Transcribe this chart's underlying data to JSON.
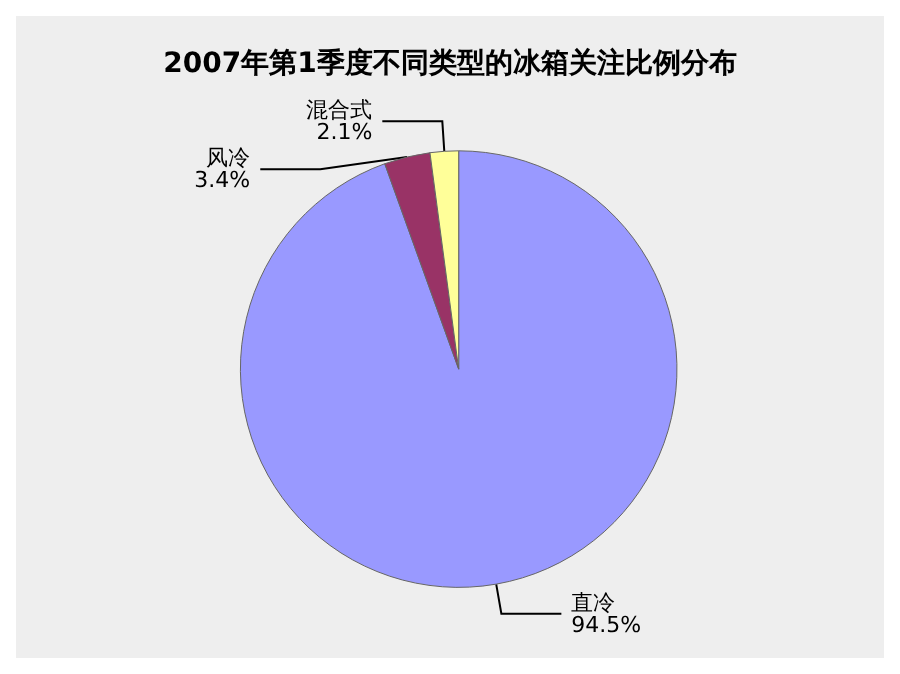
{
  "chart_data": {
    "type": "pie",
    "title": "2007年第1季度不同类型的冰箱关注比例分布",
    "categories": [
      "直冷",
      "风冷",
      "混合式"
    ],
    "values": [
      94.5,
      3.4,
      2.1
    ],
    "colors": [
      "#9999ff",
      "#993366",
      "#ffff99"
    ],
    "value_labels": [
      "94.5%",
      "3.4%",
      "2.1%"
    ],
    "legend": false
  }
}
